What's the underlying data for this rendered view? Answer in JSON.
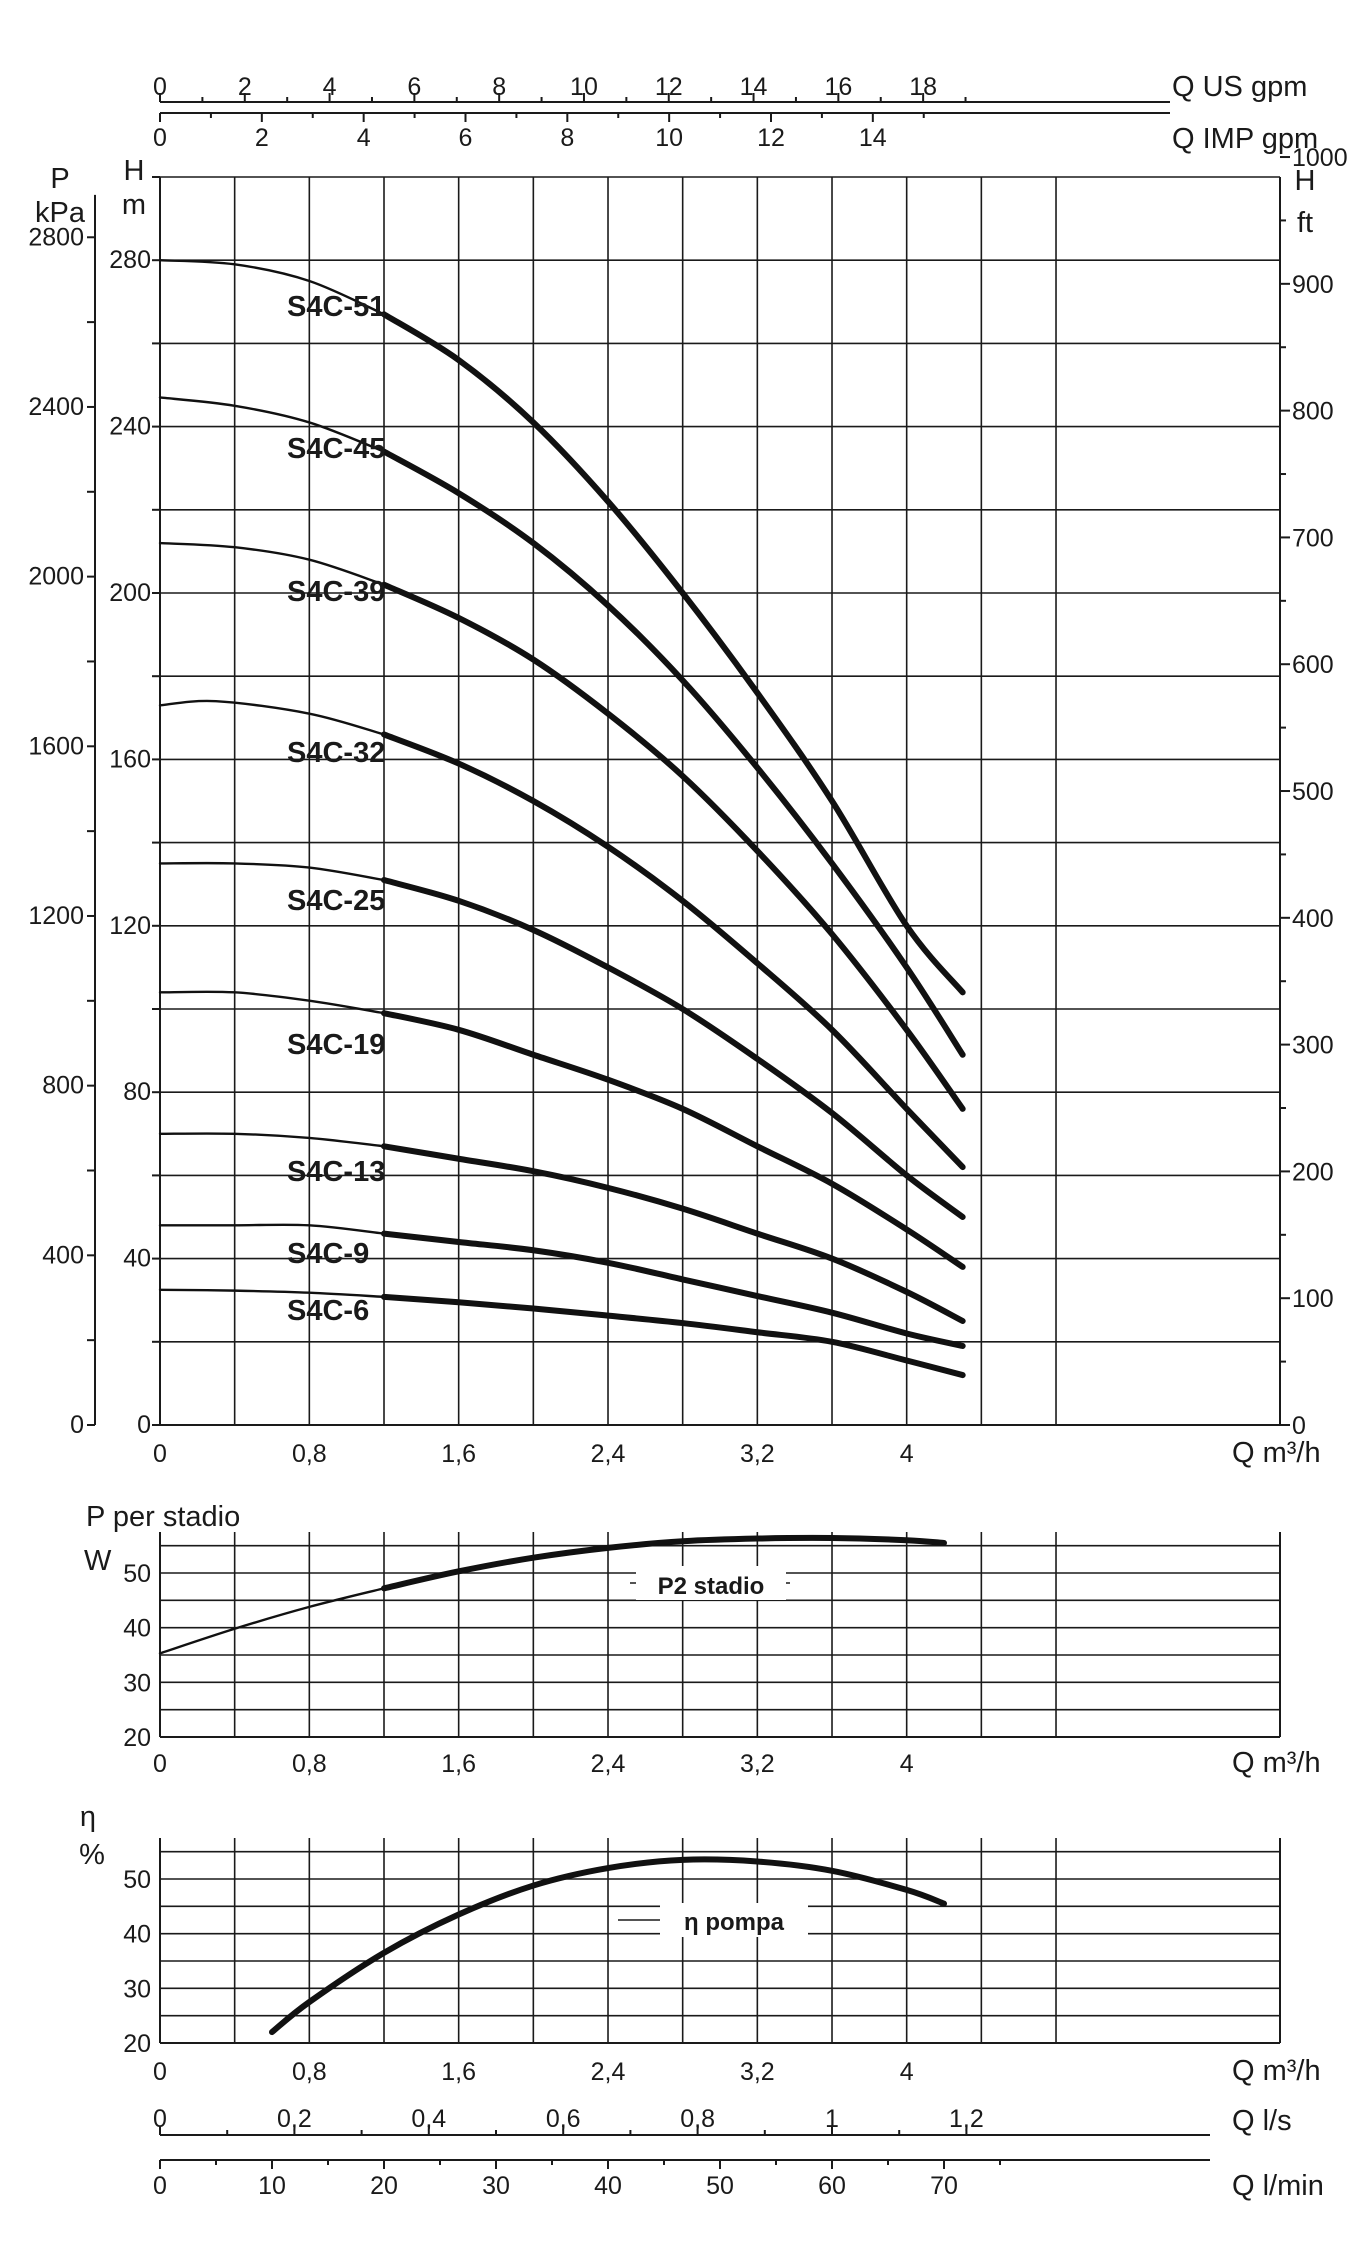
{
  "chart_data": [
    {
      "type": "line",
      "name_id": "head",
      "x_label": "Q m³/h",
      "x_ticks": [
        "0",
        "0,8",
        "1,6",
        "2,4",
        "3,2",
        "4"
      ],
      "x_tick_values": [
        0,
        0.8,
        1.6,
        2.4,
        3.2,
        4.0
      ],
      "xlim": [
        0,
        4.8
      ],
      "y_left_outer_label": [
        "P",
        "kPa"
      ],
      "y_left_outer_ticks": [
        "0",
        "400",
        "800",
        "1200",
        "1600",
        "2000",
        "2400",
        "2800"
      ],
      "y_left_outer_values": [
        0,
        400,
        800,
        1200,
        1600,
        2000,
        2400,
        2800
      ],
      "y_left_inner_label": [
        "H",
        "m"
      ],
      "y_left_inner_ticks": [
        "0",
        "40",
        "80",
        "120",
        "160",
        "200",
        "240",
        "280"
      ],
      "y_left_inner_values": [
        0,
        40,
        80,
        120,
        160,
        200,
        240,
        280
      ],
      "y_right_label": [
        "H",
        "ft"
      ],
      "y_right_ticks": [
        "0",
        "100",
        "200",
        "300",
        "400",
        "500",
        "600",
        "700",
        "800",
        "900",
        "1000"
      ],
      "y_right_values": [
        0,
        100,
        200,
        300,
        400,
        500,
        600,
        700,
        800,
        900,
        1000
      ],
      "ylim_m": [
        0,
        300
      ],
      "top_axis_us": {
        "label": "Q US gpm",
        "ticks": [
          "0",
          "2",
          "4",
          "6",
          "8",
          "10",
          "12",
          "14",
          "16",
          "18"
        ],
        "values": [
          0,
          2,
          4,
          6,
          8,
          10,
          12,
          14,
          16,
          18
        ]
      },
      "top_axis_imp": {
        "label": "Q IMP gpm",
        "ticks": [
          "0",
          "2",
          "4",
          "6",
          "8",
          "10",
          "12",
          "14"
        ],
        "values": [
          0,
          2,
          4,
          6,
          8,
          10,
          12,
          14
        ]
      },
      "series": [
        {
          "name": "S4C-51",
          "x": [
            0,
            0.4,
            0.8,
            1.2,
            1.6,
            2.0,
            2.4,
            2.8,
            3.2,
            3.6,
            4.0,
            4.3
          ],
          "y": [
            280,
            279,
            275,
            267,
            256,
            241,
            222,
            200,
            176,
            150,
            120,
            104
          ]
        },
        {
          "name": "S4C-45",
          "x": [
            0,
            0.4,
            0.8,
            1.2,
            1.6,
            2.0,
            2.4,
            2.8,
            3.2,
            3.6,
            4.0,
            4.3
          ],
          "y": [
            247,
            245,
            241,
            234,
            224,
            212,
            197,
            179,
            158,
            135,
            110,
            89
          ]
        },
        {
          "name": "S4C-39",
          "x": [
            0,
            0.4,
            0.8,
            1.2,
            1.6,
            2.0,
            2.4,
            2.8,
            3.2,
            3.6,
            4.0,
            4.3
          ],
          "y": [
            212,
            211,
            208,
            202,
            194,
            184,
            171,
            156,
            138,
            118,
            95,
            76
          ]
        },
        {
          "name": "S4C-32",
          "x": [
            0,
            0.3,
            0.8,
            1.2,
            1.6,
            2.0,
            2.4,
            2.8,
            3.2,
            3.6,
            4.0,
            4.3
          ],
          "y": [
            173,
            174,
            171,
            166,
            159,
            150,
            139,
            126,
            111,
            95,
            76,
            62
          ]
        },
        {
          "name": "S4C-25",
          "x": [
            0,
            0.4,
            0.8,
            1.2,
            1.6,
            2.0,
            2.4,
            2.8,
            3.2,
            3.6,
            4.0,
            4.3
          ],
          "y": [
            135,
            135,
            134,
            131,
            126,
            119,
            110,
            100,
            88,
            75,
            60,
            50
          ]
        },
        {
          "name": "S4C-19",
          "x": [
            0,
            0.4,
            0.8,
            1.2,
            1.6,
            2.0,
            2.4,
            2.8,
            3.2,
            3.6,
            4.0,
            4.3
          ],
          "y": [
            104,
            104,
            102,
            99,
            95,
            89,
            83,
            76,
            67,
            58,
            47,
            38
          ]
        },
        {
          "name": "S4C-13",
          "x": [
            0,
            0.4,
            0.8,
            1.2,
            1.6,
            2.0,
            2.4,
            2.8,
            3.2,
            3.6,
            4.0,
            4.3
          ],
          "y": [
            70,
            70,
            69,
            67,
            64,
            61,
            57,
            52,
            46,
            40,
            32,
            25
          ]
        },
        {
          "name": "S4C-9",
          "x": [
            0,
            0.4,
            0.8,
            1.2,
            1.6,
            2.0,
            2.4,
            2.8,
            3.2,
            3.6,
            4.0,
            4.3
          ],
          "y": [
            48,
            48,
            48,
            46,
            44,
            42,
            39,
            35,
            31,
            27,
            22,
            19
          ]
        },
        {
          "name": "S4C-6",
          "x": [
            0,
            0.4,
            0.8,
            1.2,
            1.6,
            2.0,
            2.4,
            2.8,
            3.2,
            3.6,
            4.0,
            4.3
          ],
          "y": [
            32.5,
            32.3,
            31.8,
            30.8,
            29.5,
            28,
            26.3,
            24.5,
            22.3,
            20,
            15.5,
            12
          ]
        }
      ]
    },
    {
      "type": "line",
      "name_id": "power",
      "title": "P  per stadio",
      "y_unit": "W",
      "x_label": "Q m³/h",
      "x_ticks": [
        "0",
        "0,8",
        "1,6",
        "2,4",
        "3,2",
        "4"
      ],
      "x_tick_values": [
        0,
        0.8,
        1.6,
        2.4,
        3.2,
        4.0
      ],
      "xlim": [
        0,
        4.8
      ],
      "y_ticks": [
        "20",
        "30",
        "40",
        "50"
      ],
      "y_values": [
        20,
        30,
        40,
        50
      ],
      "ylim": [
        20,
        57.5
      ],
      "series": [
        {
          "name": "P2 stadio",
          "x": [
            0,
            0.4,
            0.8,
            1.2,
            1.6,
            2.0,
            2.4,
            2.8,
            3.2,
            3.6,
            4.0,
            4.2
          ],
          "y": [
            35.3,
            39.8,
            43.8,
            47.2,
            50.3,
            52.8,
            54.6,
            55.8,
            56.3,
            56.4,
            56,
            55.5
          ]
        }
      ]
    },
    {
      "type": "line",
      "name_id": "efficiency",
      "title": "η",
      "y_unit": "%",
      "x_label": "Q m³/h",
      "x_ticks": [
        "0",
        "0,8",
        "1,6",
        "2,4",
        "3,2",
        "4"
      ],
      "x_tick_values": [
        0,
        0.8,
        1.6,
        2.4,
        3.2,
        4.0
      ],
      "xlim": [
        0,
        4.8
      ],
      "y_ticks": [
        "20",
        "30",
        "40",
        "50"
      ],
      "y_values": [
        20,
        30,
        40,
        50
      ],
      "ylim": [
        20,
        57.5
      ],
      "series": [
        {
          "name": "η pompa",
          "x": [
            0.6,
            0.8,
            1.2,
            1.6,
            2.0,
            2.4,
            2.8,
            3.2,
            3.6,
            4.0,
            4.2
          ],
          "y": [
            22,
            27.5,
            36.5,
            43.5,
            48.8,
            52,
            53.5,
            53.2,
            51.5,
            48,
            45.5
          ]
        }
      ],
      "axis_ls": {
        "label": "Q l/s",
        "ticks": [
          "0",
          "0,2",
          "0,4",
          "0,6",
          "0,8",
          "1",
          "1,2"
        ],
        "values": [
          0,
          0.2,
          0.4,
          0.6,
          0.8,
          1.0,
          1.2
        ]
      },
      "axis_lmin": {
        "label": "Q l/min",
        "ticks": [
          "0",
          "10",
          "20",
          "30",
          "40",
          "50",
          "60",
          "70"
        ],
        "values": [
          0,
          10,
          20,
          30,
          40,
          50,
          60,
          70
        ]
      }
    }
  ]
}
